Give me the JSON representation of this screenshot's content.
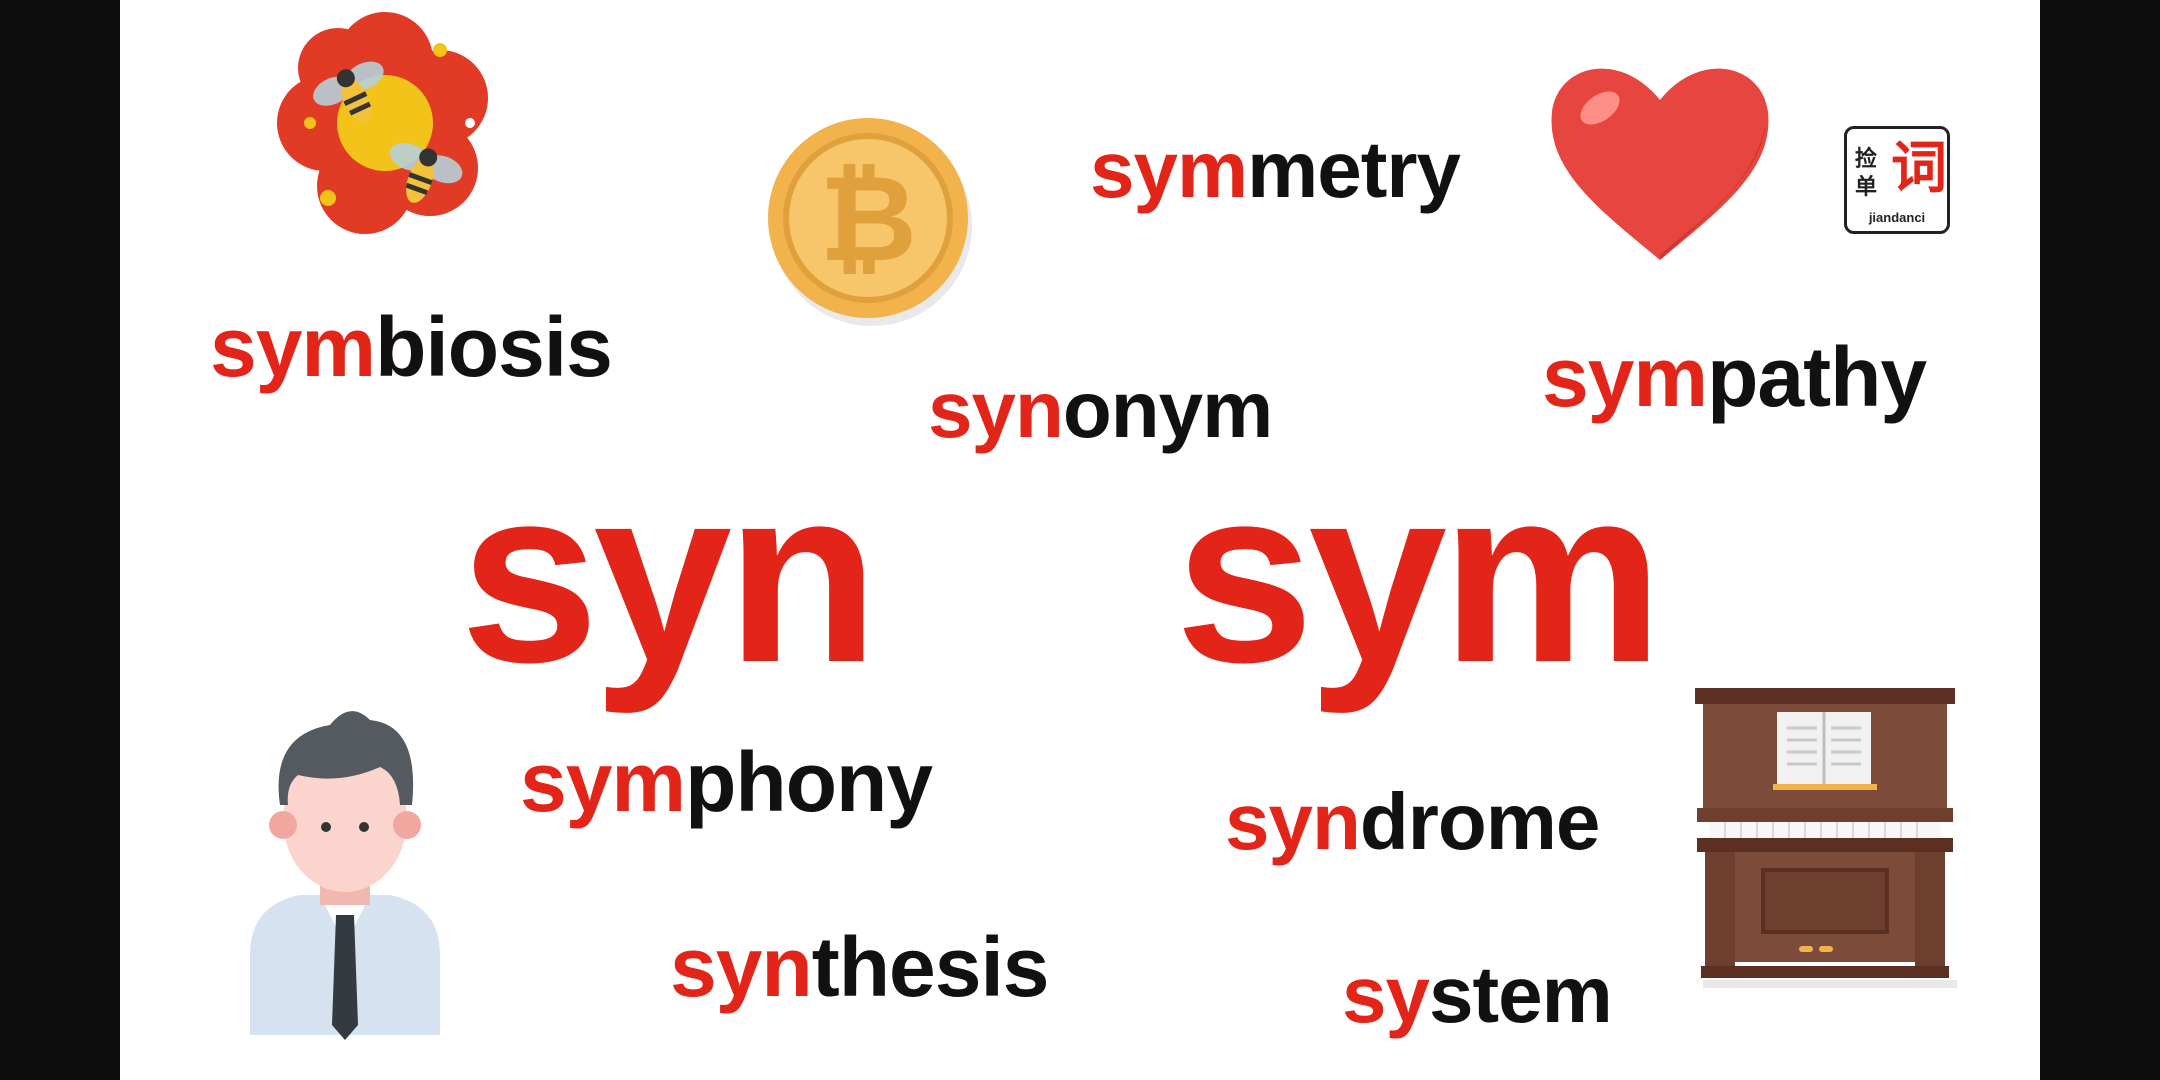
{
  "roots": {
    "left": "syn",
    "right": "sym"
  },
  "words": {
    "symbiosis": {
      "prefix": "sym",
      "rest": "biosis"
    },
    "symmetry": {
      "prefix": "sym",
      "rest": "metry"
    },
    "synonym": {
      "prefix": "syn",
      "rest": "onym"
    },
    "sympathy": {
      "prefix": "sym",
      "rest": "pathy"
    },
    "symphony": {
      "prefix": "sym",
      "rest": "phony"
    },
    "syndrome": {
      "prefix": "syn",
      "rest": "drome"
    },
    "synthesis": {
      "prefix": "syn",
      "rest": "thesis"
    },
    "system": {
      "prefix": "sy",
      "rest": "stem"
    }
  },
  "logo": {
    "char1": "捡",
    "char2": "单",
    "char3": "词",
    "pinyin": "jiandanci"
  },
  "icons": [
    "flower-with-bees-icon",
    "bitcoin-coin-icon",
    "heart-icon",
    "businessman-icon",
    "piano-icon"
  ],
  "colors": {
    "accent": "#e32418",
    "text": "#111111",
    "background": "#ffffff",
    "letterbox": "#0d0d0d"
  }
}
